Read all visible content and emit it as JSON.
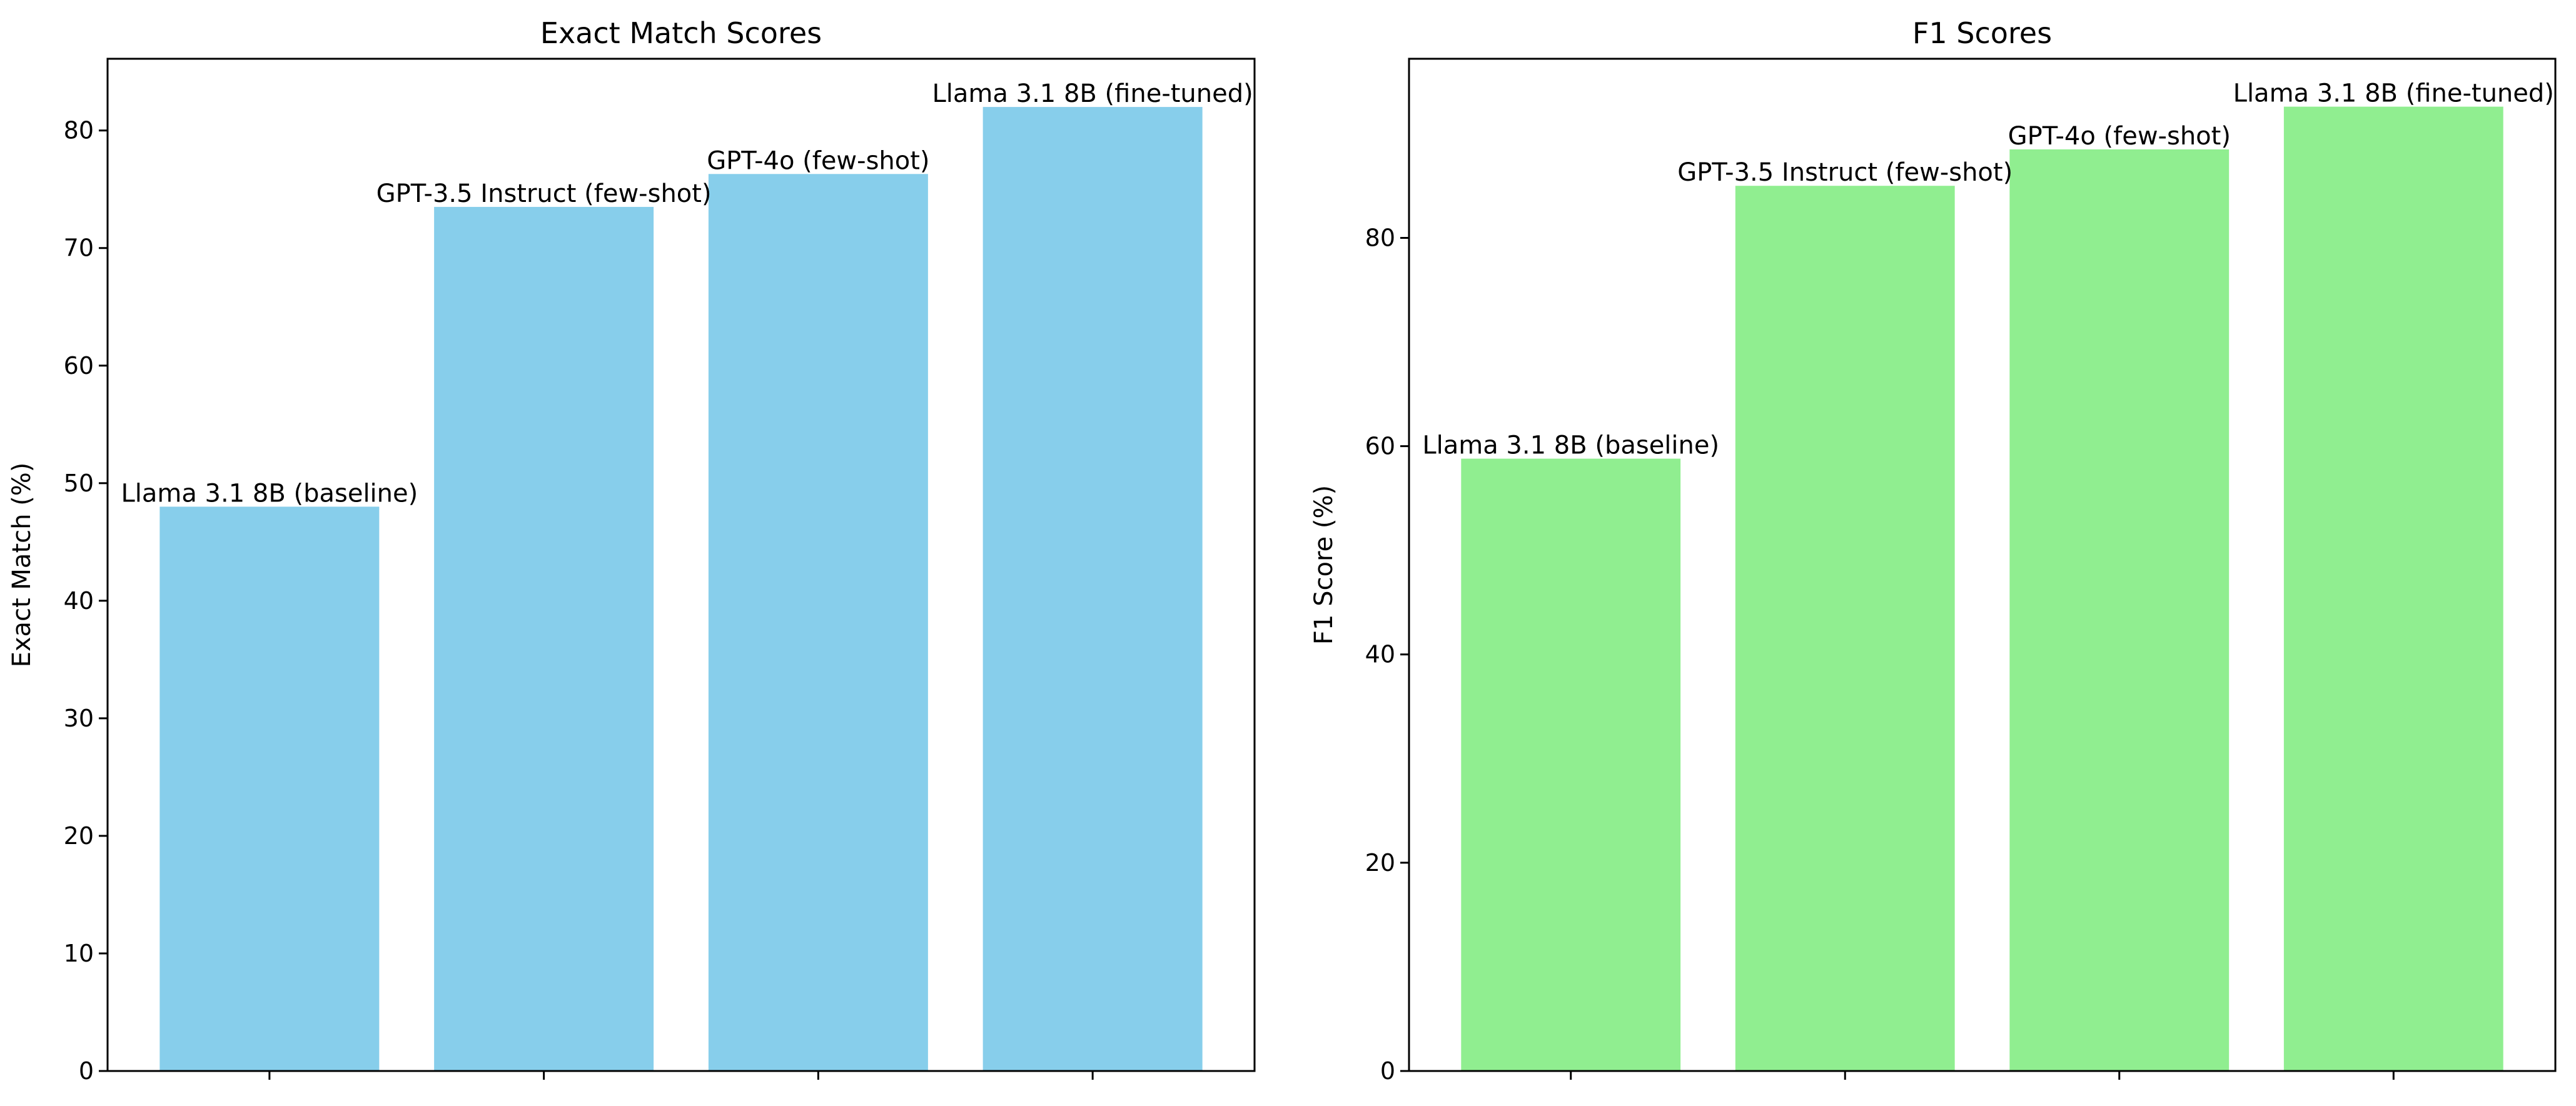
{
  "chart_data": [
    {
      "type": "bar",
      "title": "Exact Match Scores",
      "xlabel": "",
      "ylabel": "Exact Match (%)",
      "categories": [
        "Llama 3.1 8B (baseline)",
        "GPT-3.5 Instruct (few-shot)",
        "GPT-4o (few-shot)",
        "Llama 3.1 8B (fine-tuned)"
      ],
      "values": [
        48.0,
        73.5,
        76.3,
        82.0
      ],
      "ylim": [
        0,
        86.1
      ],
      "yticks": [
        0,
        10,
        20,
        30,
        40,
        50,
        60,
        70,
        80
      ],
      "bar_color": "#87CEEB",
      "grid": false,
      "legend": "none"
    },
    {
      "type": "bar",
      "title": "F1 Scores",
      "xlabel": "",
      "ylabel": "F1 Score (%)",
      "categories": [
        "Llama 3.1 8B (baseline)",
        "GPT-3.5 Instruct (few-shot)",
        "GPT-4o (few-shot)",
        "Llama 3.1 8B (fine-tuned)"
      ],
      "values": [
        58.8,
        85.0,
        88.5,
        92.6
      ],
      "ylim": [
        0,
        97.2
      ],
      "yticks": [
        0,
        20,
        40,
        60,
        80
      ],
      "bar_color": "#90EE90",
      "grid": false,
      "legend": "none"
    }
  ]
}
